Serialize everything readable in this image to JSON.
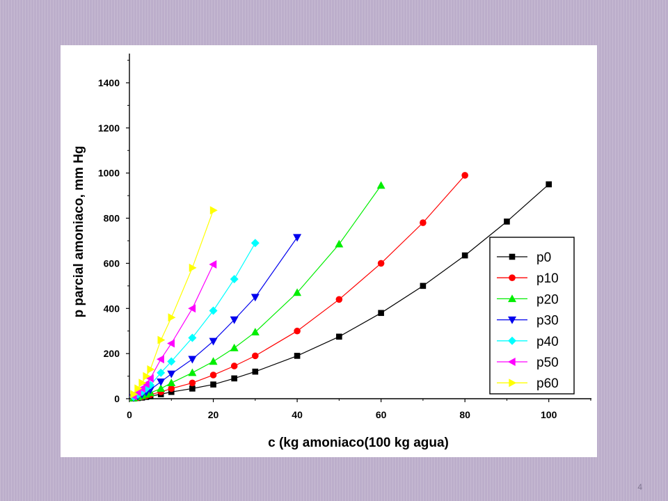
{
  "slide": {
    "page_number": "4"
  },
  "chart_data": {
    "type": "line",
    "xlabel": "c (kg amoniaco(100 kg agua)",
    "ylabel": "p parcial amoniaco, mm Hg",
    "xlim": [
      0,
      110
    ],
    "ylim": [
      0,
      1500
    ],
    "xticks": [
      0,
      20,
      40,
      60,
      80,
      100
    ],
    "yticks": [
      0,
      200,
      400,
      600,
      800,
      1000,
      1200,
      1400
    ],
    "grid": false,
    "legend_position": "bottom-right",
    "series": [
      {
        "name": "p0",
        "color": "#000000",
        "marker": "square",
        "x": [
          1,
          2,
          3,
          4,
          5,
          7.5,
          10,
          15,
          20,
          25,
          30,
          40,
          50,
          60,
          70,
          80,
          90,
          100
        ],
        "y": [
          1,
          3,
          5,
          8,
          11,
          20,
          30,
          45,
          63,
          90,
          120,
          190,
          275,
          380,
          500,
          635,
          785,
          950
        ]
      },
      {
        "name": "p10",
        "color": "#ff0000",
        "marker": "circle",
        "x": [
          1,
          2,
          3,
          4,
          5,
          7.5,
          10,
          15,
          20,
          25,
          30,
          40,
          50,
          60,
          70,
          80
        ],
        "y": [
          2,
          5,
          9,
          13,
          18,
          30,
          45,
          70,
          105,
          145,
          190,
          300,
          440,
          600,
          780,
          990
        ]
      },
      {
        "name": "p20",
        "color": "#00ee00",
        "marker": "triangle-up",
        "x": [
          1,
          2,
          3,
          4,
          5,
          7.5,
          10,
          15,
          20,
          25,
          30,
          40,
          50,
          60
        ],
        "y": [
          3,
          8,
          13,
          19,
          26,
          45,
          70,
          115,
          165,
          225,
          295,
          470,
          685,
          945
        ]
      },
      {
        "name": "p30",
        "color": "#0000ee",
        "marker": "triangle-down",
        "x": [
          1,
          2,
          3,
          4,
          5,
          7.5,
          10,
          15,
          20,
          25,
          30,
          40
        ],
        "y": [
          5,
          12,
          20,
          29,
          40,
          75,
          110,
          175,
          255,
          350,
          450,
          715
        ]
      },
      {
        "name": "p40",
        "color": "#00ffff",
        "marker": "diamond",
        "x": [
          1,
          2,
          3,
          4,
          5,
          7.5,
          10,
          15,
          20,
          25,
          30
        ],
        "y": [
          8,
          18,
          30,
          45,
          60,
          115,
          165,
          270,
          390,
          530,
          690
        ]
      },
      {
        "name": "p50",
        "color": "#ff00ff",
        "marker": "triangle-left",
        "x": [
          1,
          2,
          3,
          4,
          5,
          7.5,
          10,
          15,
          20
        ],
        "y": [
          12,
          28,
          45,
          65,
          90,
          175,
          245,
          400,
          595
        ]
      },
      {
        "name": "p60",
        "color": "#ffff00",
        "marker": "triangle-right",
        "x": [
          1,
          2,
          3,
          4,
          5,
          7.5,
          10,
          15,
          20
        ],
        "y": [
          20,
          45,
          70,
          100,
          130,
          260,
          360,
          580,
          835
        ]
      }
    ]
  }
}
